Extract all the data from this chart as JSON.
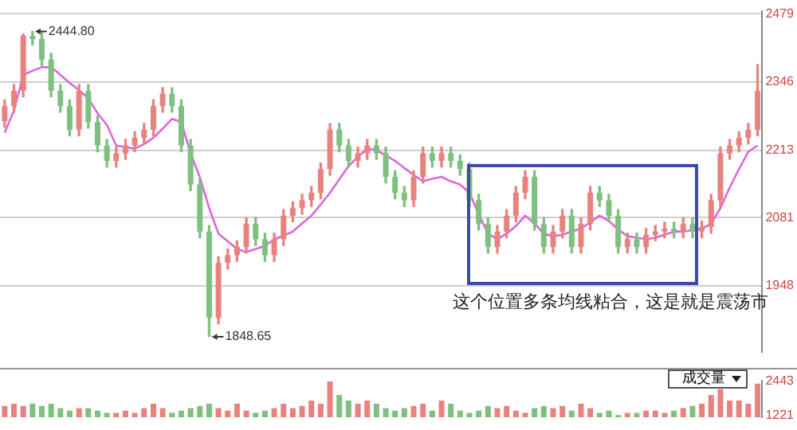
{
  "chart_data": [
    {
      "type": "candlestick",
      "categories": [
        null,
        null,
        null,
        null,
        null,
        null,
        null,
        null,
        null,
        null,
        null,
        null,
        null,
        null,
        null,
        null,
        null,
        null,
        null,
        null,
        null,
        null,
        null,
        null,
        null,
        null,
        null,
        null,
        null,
        null,
        null,
        null,
        null,
        null,
        null,
        null,
        null,
        null,
        null,
        null,
        null,
        null,
        null,
        null,
        null,
        null,
        null,
        null,
        null,
        null,
        null,
        null,
        null,
        null,
        null,
        null,
        null,
        null,
        null,
        null,
        null,
        null,
        null,
        null,
        null,
        null,
        null,
        null,
        null,
        null,
        null,
        null,
        null,
        null,
        null,
        null,
        null,
        null,
        null,
        null,
        null,
        null
      ],
      "ohlc": [
        [
          2270,
          2311,
          2258,
          2299
        ],
        [
          2299,
          2341,
          2287,
          2329
        ],
        [
          2329,
          2440,
          2317,
          2436
        ],
        [
          2436,
          2444.8,
          2418,
          2430
        ],
        [
          2430,
          2442,
          2378,
          2390
        ],
        [
          2390,
          2402,
          2317,
          2329
        ],
        [
          2329,
          2341,
          2287,
          2299
        ],
        [
          2299,
          2311,
          2241,
          2253
        ],
        [
          2253,
          2341,
          2241,
          2329
        ],
        [
          2329,
          2341,
          2256,
          2268
        ],
        [
          2268,
          2280,
          2210,
          2222
        ],
        [
          2222,
          2234,
          2180,
          2192
        ],
        [
          2192,
          2219,
          2180,
          2207
        ],
        [
          2207,
          2234,
          2195,
          2222
        ],
        [
          2222,
          2249,
          2210,
          2237
        ],
        [
          2237,
          2265,
          2225,
          2253
        ],
        [
          2253,
          2311,
          2241,
          2299
        ],
        [
          2299,
          2335,
          2287,
          2323
        ],
        [
          2323,
          2335,
          2287,
          2299
        ],
        [
          2299,
          2311,
          2210,
          2222
        ],
        [
          2222,
          2234,
          2134,
          2146
        ],
        [
          2146,
          2158,
          2042,
          2054
        ],
        [
          2054,
          2066,
          1848.65,
          1886
        ],
        [
          1886,
          2005,
          1874,
          1993
        ],
        [
          1993,
          2020,
          1981,
          2008
        ],
        [
          2008,
          2036,
          1996,
          2024
        ],
        [
          2024,
          2081,
          2012,
          2069
        ],
        [
          2069,
          2081,
          2027,
          2039
        ],
        [
          2039,
          2051,
          1996,
          2008
        ],
        [
          2008,
          2051,
          1996,
          2039
        ],
        [
          2039,
          2097,
          2027,
          2085
        ],
        [
          2085,
          2112,
          2073,
          2100
        ],
        [
          2100,
          2127,
          2088,
          2115
        ],
        [
          2115,
          2142,
          2103,
          2130
        ],
        [
          2130,
          2188,
          2118,
          2176
        ],
        [
          2176,
          2265,
          2164,
          2253
        ],
        [
          2253,
          2265,
          2210,
          2222
        ],
        [
          2222,
          2234,
          2180,
          2192
        ],
        [
          2192,
          2219,
          2180,
          2207
        ],
        [
          2207,
          2234,
          2195,
          2222
        ],
        [
          2222,
          2234,
          2195,
          2207
        ],
        [
          2207,
          2219,
          2149,
          2161
        ],
        [
          2161,
          2173,
          2118,
          2130
        ],
        [
          2130,
          2142,
          2103,
          2115
        ],
        [
          2115,
          2173,
          2103,
          2161
        ],
        [
          2161,
          2219,
          2149,
          2207
        ],
        [
          2207,
          2219,
          2180,
          2192
        ],
        [
          2192,
          2219,
          2180,
          2207
        ],
        [
          2207,
          2219,
          2180,
          2192
        ],
        [
          2192,
          2204,
          2164,
          2176
        ],
        [
          2176,
          2188,
          2103,
          2115
        ],
        [
          2115,
          2127,
          2057,
          2069
        ],
        [
          2069,
          2081,
          2012,
          2024
        ],
        [
          2024,
          2066,
          2012,
          2054
        ],
        [
          2054,
          2097,
          2042,
          2085
        ],
        [
          2085,
          2142,
          2073,
          2130
        ],
        [
          2130,
          2173,
          2118,
          2161
        ],
        [
          2161,
          2173,
          2057,
          2069
        ],
        [
          2069,
          2081,
          2012,
          2024
        ],
        [
          2024,
          2066,
          2012,
          2054
        ],
        [
          2054,
          2097,
          2042,
          2085
        ],
        [
          2085,
          2097,
          2012,
          2024
        ],
        [
          2024,
          2081,
          2012,
          2069
        ],
        [
          2069,
          2142,
          2057,
          2130
        ],
        [
          2130,
          2142,
          2103,
          2115
        ],
        [
          2115,
          2127,
          2073,
          2085
        ],
        [
          2085,
          2097,
          2012,
          2024
        ],
        [
          2024,
          2051,
          2012,
          2039
        ],
        [
          2039,
          2051,
          2012,
          2024
        ],
        [
          2024,
          2060,
          2012,
          2048
        ],
        [
          2048,
          2066,
          2036,
          2054
        ],
        [
          2054,
          2072,
          2042,
          2060
        ],
        [
          2060,
          2072,
          2042,
          2054
        ],
        [
          2054,
          2081,
          2042,
          2069
        ],
        [
          2069,
          2081,
          2042,
          2054
        ],
        [
          2054,
          2075,
          2042,
          2063
        ],
        [
          2063,
          2127,
          2051,
          2115
        ],
        [
          2115,
          2219,
          2103,
          2207
        ],
        [
          2207,
          2234,
          2195,
          2222
        ],
        [
          2222,
          2249,
          2210,
          2237
        ],
        [
          2237,
          2265,
          2225,
          2253
        ],
        [
          2253,
          2380,
          2241,
          2329
        ]
      ],
      "colors": [
        "#e8827f",
        "#e8827f",
        "#e8827f",
        "#7fbf7f",
        "#7fbf7f",
        "#7fbf7f",
        "#7fbf7f",
        "#7fbf7f",
        "#e8827f",
        "#7fbf7f",
        "#7fbf7f",
        "#7fbf7f",
        "#e8827f",
        "#e8827f",
        "#e8827f",
        "#e8827f",
        "#e8827f",
        "#e8827f",
        "#7fbf7f",
        "#7fbf7f",
        "#7fbf7f",
        "#7fbf7f",
        "#7fbf7f",
        "#e8827f",
        "#e8827f",
        "#e8827f",
        "#e8827f",
        "#7fbf7f",
        "#7fbf7f",
        "#e8827f",
        "#e8827f",
        "#e8827f",
        "#e8827f",
        "#e8827f",
        "#e8827f",
        "#e8827f",
        "#7fbf7f",
        "#7fbf7f",
        "#e8827f",
        "#e8827f",
        "#7fbf7f",
        "#7fbf7f",
        "#7fbf7f",
        "#7fbf7f",
        "#e8827f",
        "#e8827f",
        "#7fbf7f",
        "#e8827f",
        "#7fbf7f",
        "#7fbf7f",
        "#7fbf7f",
        "#7fbf7f",
        "#7fbf7f",
        "#e8827f",
        "#e8827f",
        "#e8827f",
        "#e8827f",
        "#7fbf7f",
        "#7fbf7f",
        "#e8827f",
        "#e8827f",
        "#7fbf7f",
        "#e8827f",
        "#e8827f",
        "#7fbf7f",
        "#7fbf7f",
        "#7fbf7f",
        "#e8827f",
        "#7fbf7f",
        "#e8827f",
        "#e8827f",
        "#e8827f",
        "#7fbf7f",
        "#e8827f",
        "#7fbf7f",
        "#e8827f",
        "#e8827f",
        "#e8827f",
        "#e8827f",
        "#e8827f",
        "#e8827f",
        "#e8827f"
      ],
      "series": [
        {
          "type": "line",
          "color": "#dd66dd",
          "values": [
            2247,
            2290,
            2360,
            2368,
            2375,
            2375,
            2360,
            2344,
            2330,
            2314,
            2285,
            2262,
            2222,
            2219,
            2216,
            2225,
            2237,
            2255,
            2274,
            2268,
            2207,
            2160,
            2100,
            2050,
            2035,
            2020,
            2014,
            2020,
            2026,
            2039,
            2046,
            2054,
            2070,
            2085,
            2107,
            2130,
            2156,
            2182,
            2200,
            2216,
            2213,
            2203,
            2192,
            2178,
            2165,
            2152,
            2157,
            2161,
            2152,
            2146,
            2130,
            2088,
            2050,
            2039,
            2050,
            2065,
            2085,
            2070,
            2050,
            2045,
            2048,
            2054,
            2060,
            2072,
            2085,
            2075,
            2058,
            2045,
            2042,
            2039,
            2042,
            2048,
            2054,
            2054,
            2057,
            2060,
            2069,
            2100,
            2140,
            2176,
            2210,
            2222
          ]
        }
      ],
      "ylim": [
        1819,
        2485
      ],
      "yticks": [
        1948,
        2081,
        2213,
        2346,
        2479
      ],
      "grid": "y",
      "tick_labels": "y",
      "legend": false,
      "marker": "none",
      "annotations": [
        "2444.80",
        "1848.65",
        "这个位置多条均线粘合，这是就是震荡市"
      ]
    },
    {
      "type": "bar",
      "categories": [
        null,
        null,
        null,
        null,
        null,
        null,
        null,
        null,
        null,
        null,
        null,
        null,
        null,
        null,
        null,
        null,
        null,
        null,
        null,
        null,
        null,
        null,
        null,
        null,
        null,
        null,
        null,
        null,
        null,
        null,
        null,
        null,
        null,
        null,
        null,
        null,
        null,
        null,
        null,
        null,
        null,
        null,
        null,
        null,
        null,
        null,
        null,
        null,
        null,
        null,
        null,
        null,
        null,
        null,
        null,
        null,
        null,
        null,
        null,
        null,
        null,
        null,
        null,
        null,
        null,
        null,
        null,
        null,
        null,
        null,
        null,
        null,
        null,
        null,
        null,
        null,
        null,
        null,
        null,
        null,
        null,
        null
      ],
      "values": [
        1550,
        1630,
        1550,
        1630,
        1550,
        1630,
        1470,
        1380,
        1470,
        1470,
        1380,
        1300,
        1300,
        1380,
        1300,
        1470,
        1630,
        1470,
        1300,
        1380,
        1470,
        1550,
        1630,
        1470,
        1380,
        1630,
        1380,
        1300,
        1380,
        1470,
        1630,
        1470,
        1550,
        1750,
        1630,
        2440,
        1950,
        1750,
        1630,
        1750,
        1630,
        1470,
        1380,
        1470,
        1550,
        1630,
        1380,
        1750,
        1630,
        1380,
        1300,
        1380,
        1550,
        1470,
        1550,
        1380,
        1300,
        1470,
        1550,
        1470,
        1550,
        1380,
        1630,
        1470,
        1300,
        1380,
        1220,
        1300,
        1300,
        1380,
        1380,
        1300,
        1380,
        1470,
        1550,
        1630,
        1950,
        2160,
        1750,
        1750,
        1630,
        2360
      ],
      "colors": [
        "#e8827f",
        "#e8827f",
        "#e8827f",
        "#7fbf7f",
        "#7fbf7f",
        "#7fbf7f",
        "#7fbf7f",
        "#7fbf7f",
        "#e8827f",
        "#7fbf7f",
        "#7fbf7f",
        "#7fbf7f",
        "#e8827f",
        "#e8827f",
        "#e8827f",
        "#e8827f",
        "#e8827f",
        "#e8827f",
        "#7fbf7f",
        "#7fbf7f",
        "#7fbf7f",
        "#7fbf7f",
        "#7fbf7f",
        "#e8827f",
        "#e8827f",
        "#e8827f",
        "#e8827f",
        "#7fbf7f",
        "#7fbf7f",
        "#e8827f",
        "#e8827f",
        "#e8827f",
        "#e8827f",
        "#e8827f",
        "#e8827f",
        "#e8827f",
        "#7fbf7f",
        "#7fbf7f",
        "#e8827f",
        "#e8827f",
        "#7fbf7f",
        "#7fbf7f",
        "#7fbf7f",
        "#7fbf7f",
        "#e8827f",
        "#e8827f",
        "#7fbf7f",
        "#e8827f",
        "#7fbf7f",
        "#7fbf7f",
        "#7fbf7f",
        "#7fbf7f",
        "#7fbf7f",
        "#e8827f",
        "#e8827f",
        "#e8827f",
        "#e8827f",
        "#7fbf7f",
        "#7fbf7f",
        "#e8827f",
        "#e8827f",
        "#7fbf7f",
        "#e8827f",
        "#e8827f",
        "#7fbf7f",
        "#7fbf7f",
        "#7fbf7f",
        "#e8827f",
        "#7fbf7f",
        "#e8827f",
        "#e8827f",
        "#e8827f",
        "#7fbf7f",
        "#e8827f",
        "#7fbf7f",
        "#e8827f",
        "#e8827f",
        "#e8827f",
        "#e8827f",
        "#e8827f",
        "#e8827f",
        "#e8827f"
      ],
      "ylim": [
        1140,
        2480
      ],
      "yticks": [
        1221,
        2443
      ],
      "tick_labels": "y",
      "legend": false,
      "annotations": [
        "成交量"
      ]
    }
  ]
}
